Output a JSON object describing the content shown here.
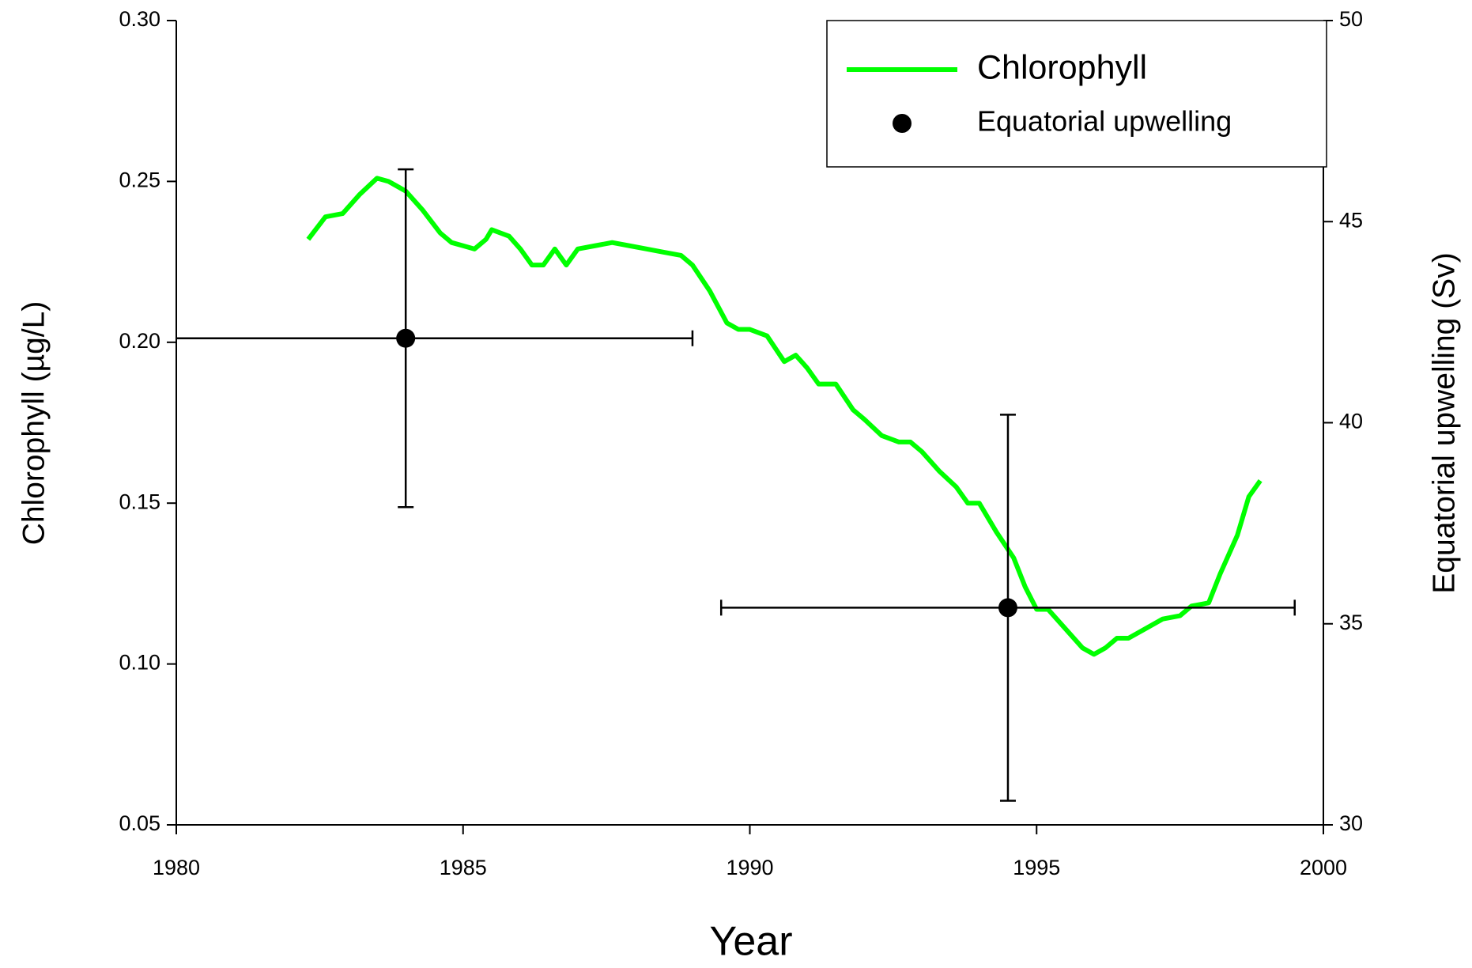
{
  "chart_data": {
    "type": "line",
    "xlabel": "Year",
    "ylabel": "Chlorophyll (µg/L)",
    "y2label": "Equatorial upwelling (Sv)",
    "xlim": [
      1980,
      2000
    ],
    "xticks": [
      1980,
      1985,
      1990,
      1995,
      2000
    ],
    "ylim": [
      0.05,
      0.3
    ],
    "yticks": [
      0.05,
      {
        "value": 0.1,
        "label": "0.10"
      },
      0.15,
      {
        "value": 0.2,
        "label": "0.20"
      },
      0.25,
      {
        "value": 0.3,
        "label": "0.30"
      }
    ],
    "y2lim": [
      30,
      50
    ],
    "y2ticks": [
      30,
      35,
      40,
      45,
      50
    ],
    "legend": "upper right",
    "series": [
      {
        "name": "Chlorophyll",
        "color": "#00ff00",
        "mode": "line",
        "x": [
          1982.3,
          1982.6,
          1982.9,
          1983.2,
          1983.5,
          1983.7,
          1984.0,
          1984.3,
          1984.6,
          1984.8,
          1985.0,
          1985.2,
          1985.4,
          1985.5,
          1985.8,
          1986.0,
          1986.2,
          1986.4,
          1986.6,
          1986.8,
          1987.0,
          1987.3,
          1987.6,
          1987.9,
          1988.2,
          1988.5,
          1988.8,
          1989.0,
          1989.3,
          1989.6,
          1989.8,
          1990.0,
          1990.3,
          1990.6,
          1990.8,
          1991.0,
          1991.2,
          1991.5,
          1991.8,
          1992.0,
          1992.3,
          1992.6,
          1992.8,
          1993.0,
          1993.3,
          1993.6,
          1993.8,
          1994.0,
          1994.3,
          1994.6,
          1994.8,
          1995.0,
          1995.2,
          1995.5,
          1995.8,
          1996.0,
          1996.2,
          1996.4,
          1996.6,
          1996.9,
          1997.2,
          1997.5,
          1997.7,
          1998.0,
          1998.2,
          1998.5,
          1998.7,
          1998.9
        ],
        "values": [
          0.232,
          0.239,
          0.24,
          0.246,
          0.251,
          0.25,
          0.247,
          0.241,
          0.234,
          0.231,
          0.23,
          0.229,
          0.232,
          0.235,
          0.233,
          0.229,
          0.224,
          0.224,
          0.229,
          0.224,
          0.229,
          0.23,
          0.231,
          0.23,
          0.229,
          0.228,
          0.227,
          0.224,
          0.216,
          0.206,
          0.204,
          0.204,
          0.202,
          0.194,
          0.196,
          0.192,
          0.187,
          0.187,
          0.179,
          0.176,
          0.171,
          0.169,
          0.169,
          0.166,
          0.16,
          0.155,
          0.15,
          0.15,
          0.141,
          0.133,
          0.124,
          0.117,
          0.117,
          0.111,
          0.105,
          0.103,
          0.105,
          0.108,
          0.108,
          0.111,
          0.114,
          0.115,
          0.118,
          0.119,
          0.128,
          0.14,
          0.152,
          0.157
        ]
      },
      {
        "name": "Equatorial upwelling",
        "color": "#000000",
        "mode": "markers",
        "axis": "y2",
        "x": [
          1984,
          1994.5
        ],
        "values": [
          42.1,
          35.4
        ],
        "xerr": [
          5,
          5
        ],
        "yerr": [
          4.2,
          4.8
        ]
      }
    ]
  }
}
